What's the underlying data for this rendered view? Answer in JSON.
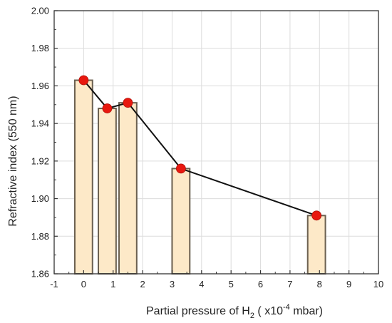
{
  "chart_data": {
    "type": "bar",
    "x": [
      0,
      0.8,
      1.5,
      3.3,
      7.9
    ],
    "values": [
      1.963,
      1.948,
      1.951,
      1.916,
      1.891
    ],
    "overlay": "line with circular markers at each bar top",
    "xlabel": {
      "prefix": "Partial pressure of H",
      "subscript": "2",
      "middle": " ( x10",
      "superscript": "-4",
      "suffix": " mbar)"
    },
    "ylabel": "Refractive index (550 nm)",
    "xlim": [
      -1,
      10
    ],
    "ylim": [
      1.86,
      2.0
    ],
    "xticks": [
      "-1",
      "0",
      "1",
      "2",
      "3",
      "4",
      "5",
      "6",
      "7",
      "8",
      "9",
      "10"
    ],
    "yticks": [
      "1.86",
      "1.88",
      "1.90",
      "1.92",
      "1.94",
      "1.96",
      "1.98",
      "2.00"
    ],
    "grid": true,
    "colors": {
      "bar_fill": "#fde9c8",
      "bar_stroke": "#6b6050",
      "marker": "#e8180f",
      "line": "#111111",
      "grid": "#dcdcdc"
    }
  }
}
